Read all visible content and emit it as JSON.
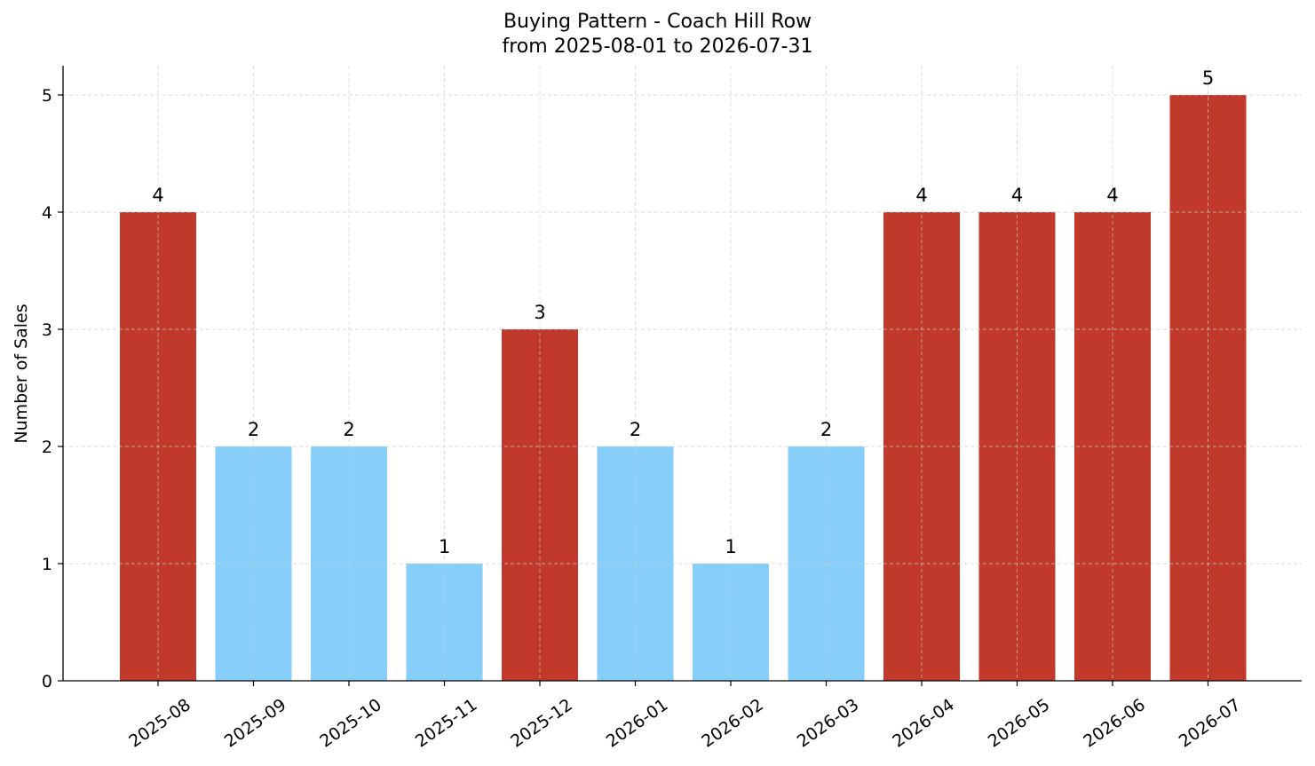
{
  "chart_data": {
    "type": "bar",
    "title": "Buying Pattern - Coach Hill Row",
    "subtitle": "from 2025-08-01 to 2026-07-31",
    "xlabel": "",
    "ylabel": "Number of Sales",
    "categories": [
      "2025-08",
      "2025-09",
      "2025-10",
      "2025-11",
      "2025-12",
      "2026-01",
      "2026-02",
      "2026-03",
      "2026-04",
      "2026-05",
      "2026-06",
      "2026-07"
    ],
    "values": [
      4,
      2,
      2,
      1,
      3,
      2,
      1,
      2,
      4,
      4,
      4,
      5
    ],
    "ylim": [
      0,
      5.25
    ],
    "yticks": [
      0,
      1,
      2,
      3,
      4,
      5
    ],
    "grid": true,
    "data_labels": true,
    "colors": {
      "high": "#C0392B",
      "low": "#87CEFA"
    },
    "color_rule": "values of 3 or more use high color, values below 3 use low color"
  }
}
